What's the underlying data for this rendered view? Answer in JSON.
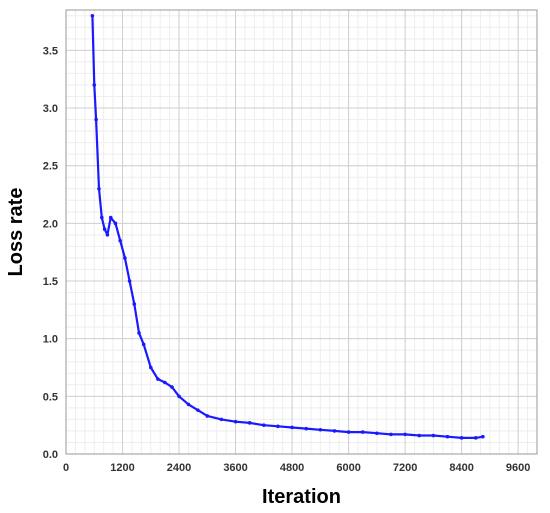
{
  "chart_data": {
    "type": "line",
    "title": "",
    "xlabel": "Iteration",
    "ylabel": "Loss rate",
    "xlim": [
      0,
      10000
    ],
    "ylim": [
      0,
      3.85
    ],
    "xticks": [
      0,
      1200,
      2400,
      3600,
      4800,
      6000,
      7200,
      8400,
      9600
    ],
    "xtick_labels": [
      "0",
      "1200",
      "2400",
      "3600",
      "4800",
      "6000",
      "7200",
      "8400",
      "9600"
    ],
    "yticks": [
      0.0,
      0.5,
      1.0,
      1.5,
      2.0,
      2.5,
      3.0,
      3.5
    ],
    "ytick_labels": [
      "0.0",
      "0.5",
      "1.0",
      "1.5",
      "2.0",
      "2.5",
      "3.0",
      "3.5"
    ],
    "grid": true,
    "legend": "none",
    "series_color": "#1a1aff",
    "series": [
      {
        "x": [
          560,
          600,
          640,
          700,
          760,
          820,
          880,
          950,
          1050,
          1150,
          1250,
          1350,
          1450,
          1550,
          1650,
          1800,
          1950,
          2100,
          2250,
          2400,
          2600,
          2800,
          3000,
          3300,
          3600,
          3900,
          4200,
          4500,
          4800,
          5100,
          5400,
          5700,
          6000,
          6300,
          6600,
          6900,
          7200,
          7500,
          7800,
          8100,
          8400,
          8700,
          8850
        ],
        "y": [
          3.8,
          3.2,
          2.9,
          2.3,
          2.05,
          1.95,
          1.9,
          2.05,
          2.0,
          1.85,
          1.7,
          1.5,
          1.3,
          1.05,
          0.95,
          0.75,
          0.65,
          0.62,
          0.58,
          0.5,
          0.43,
          0.38,
          0.33,
          0.3,
          0.28,
          0.27,
          0.25,
          0.24,
          0.23,
          0.22,
          0.21,
          0.2,
          0.19,
          0.19,
          0.18,
          0.17,
          0.17,
          0.16,
          0.16,
          0.15,
          0.14,
          0.14,
          0.15
        ]
      }
    ]
  }
}
